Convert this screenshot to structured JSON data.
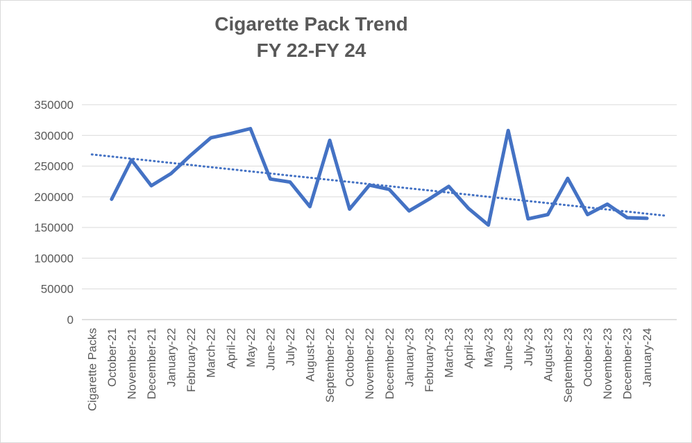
{
  "chart_data": {
    "type": "line",
    "title": "Cigarette Pack Trend",
    "subtitle": "FY 22-FY 24",
    "xlabel": "",
    "ylabel": "",
    "categories": [
      "Cigarette Packs",
      "October-21",
      "November-21",
      "December-21",
      "January-22",
      "February-22",
      "March-22",
      "April-22",
      "May-22",
      "June-22",
      "July-22",
      "August-22",
      "September-22",
      "October-22",
      "November-22",
      "December-22",
      "January-23",
      "February-23",
      "March-23",
      "April-23",
      "May-23",
      "June-23",
      "July-23",
      "August-23",
      "September-23",
      "October-23",
      "November-23",
      "December-23",
      "January-24"
    ],
    "ylim": [
      0,
      350000
    ],
    "yticks": [
      0,
      50000,
      100000,
      150000,
      200000,
      250000,
      300000,
      350000
    ],
    "series": [
      {
        "values": [
          null,
          196000,
          260000,
          218000,
          238000,
          268000,
          296000,
          303000,
          311000,
          229000,
          224000,
          184000,
          292000,
          180000,
          219000,
          212000,
          177000,
          196000,
          217000,
          181000,
          154000,
          308000,
          164000,
          171000,
          230000,
          171000,
          188000,
          166000,
          165000
        ],
        "color": "#4472c4"
      }
    ],
    "trendline": {
      "type": "linear",
      "color": "#4472c4",
      "style": "dotted",
      "start": 269000,
      "end": 169000
    },
    "grid": true,
    "legend": "none"
  }
}
